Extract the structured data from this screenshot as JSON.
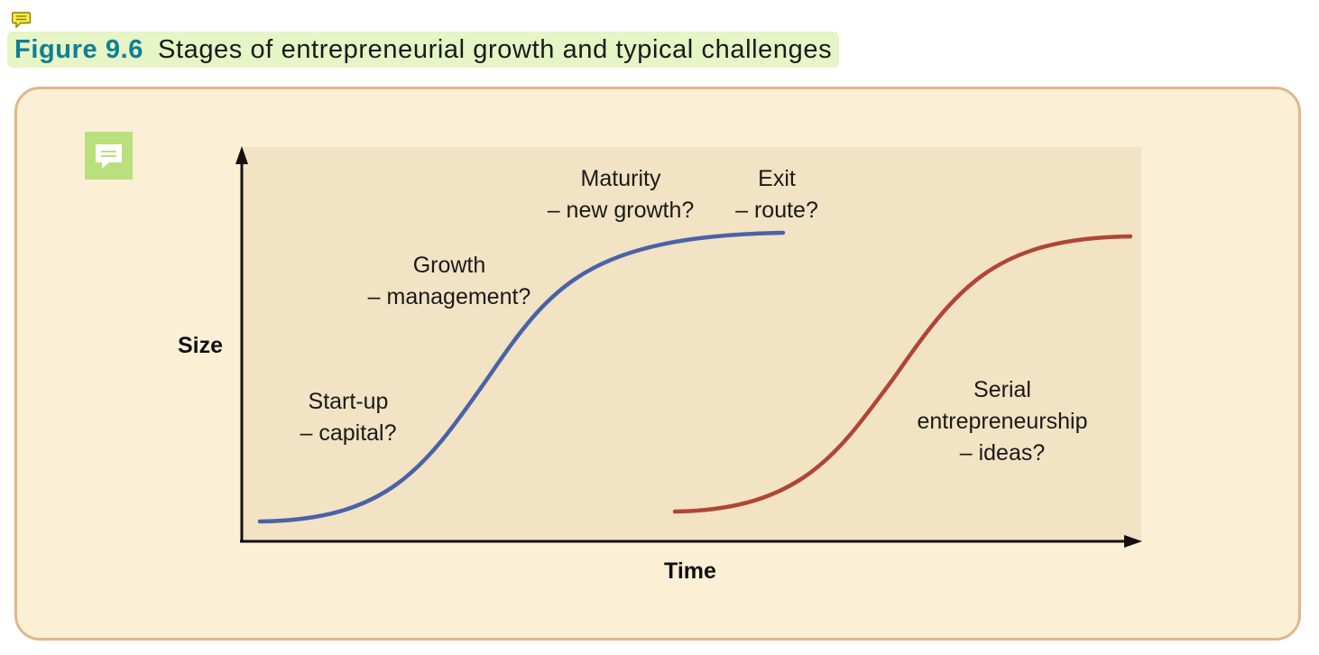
{
  "header": {
    "figure_number": "Figure 9.6",
    "caption": "Stages of entrepreneurial growth and typical challenges"
  },
  "colors": {
    "accent": "#0e7f94",
    "title_highlight": "#e6f4c6",
    "panel_bg": "#fbefd6",
    "panel_border": "#e0b78a",
    "plot_bg": "#f1e3c3",
    "curve_primary": "#4a62a8",
    "curve_secondary": "#b04536",
    "note_icon": "#b9e07c"
  },
  "icons": {
    "top": "comment-icon",
    "panel": "note-icon"
  },
  "diagram": {
    "y_axis_label": "Size",
    "x_axis_label": "Time",
    "stages": [
      {
        "id": "startup",
        "line1": "Start-up",
        "line2": "– capital?"
      },
      {
        "id": "growth",
        "line1": "Growth",
        "line2": "– management?"
      },
      {
        "id": "maturity",
        "line1": "Maturity",
        "line2": "– new growth?"
      },
      {
        "id": "exit",
        "line1": "Exit",
        "line2": "– route?"
      }
    ],
    "serial": {
      "line1": "Serial",
      "line2": "entrepreneurship",
      "line3": "– ideas?"
    }
  }
}
